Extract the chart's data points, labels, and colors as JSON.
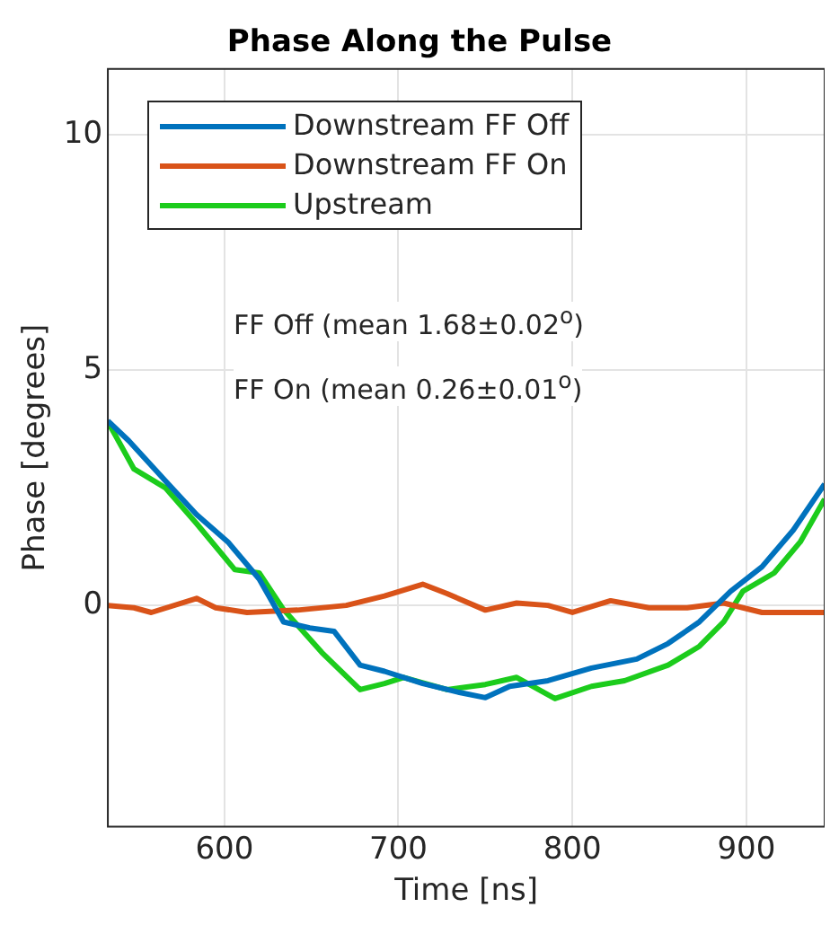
{
  "chart_data": {
    "type": "line",
    "title": "Phase Along the Pulse",
    "xlabel": "Time [ns]",
    "ylabel": "Phase [degrees]",
    "xlim": [
      533,
      945
    ],
    "xticks": [
      600,
      700,
      800,
      900
    ],
    "ylim": [
      -4.7,
      11.4
    ],
    "yticks": [
      0,
      5,
      10
    ],
    "grid": true,
    "legend": "top left",
    "marker": "none",
    "line_style": "solid",
    "annotations": [
      "FF Off (mean 1.68±0.02$^{o}$)",
      "FF On (mean 0.26±0.01$^{o}$)"
    ],
    "series": [
      {
        "name": "Downstream FF Off",
        "color": "#0072bd",
        "x": [
          533,
          545,
          566,
          584,
          602,
          620,
          634,
          649,
          663,
          678,
          692,
          714,
          735,
          750,
          764,
          786,
          811,
          837,
          855,
          873,
          891,
          909,
          927,
          945
        ],
        "values": [
          3.92,
          3.5,
          2.65,
          1.93,
          1.35,
          0.56,
          -0.35,
          -0.48,
          -0.55,
          -1.27,
          -1.4,
          -1.66,
          -1.85,
          -1.96,
          -1.72,
          -1.6,
          -1.33,
          -1.14,
          -0.81,
          -0.35,
          0.3,
          0.82,
          1.6,
          2.58
        ]
      },
      {
        "name": "Downstream FF On",
        "color": "#d95319",
        "x": [
          533,
          548,
          558,
          584,
          595,
          613,
          642,
          670,
          692,
          714,
          728,
          750,
          768,
          786,
          800,
          822,
          844,
          866,
          887,
          909,
          927,
          945
        ],
        "values": [
          0,
          -0.05,
          -0.15,
          0.15,
          -0.05,
          -0.15,
          -0.1,
          0,
          0.2,
          0.45,
          0.25,
          -0.1,
          0.05,
          0,
          -0.15,
          0.1,
          -0.05,
          -0.05,
          0.05,
          -0.15,
          -0.15,
          -0.15
        ]
      },
      {
        "name": "Upstream",
        "color": "#1ccc1c",
        "x": [
          533,
          548,
          566,
          584,
          606,
          620,
          634,
          656,
          678,
          692,
          703,
          728,
          750,
          768,
          790,
          811,
          830,
          855,
          873,
          887,
          898,
          916,
          931,
          945
        ],
        "values": [
          3.9,
          2.9,
          2.5,
          1.74,
          0.76,
          0.69,
          -0.09,
          -1,
          -1.79,
          -1.66,
          -1.53,
          -1.79,
          -1.68,
          -1.53,
          -1.98,
          -1.72,
          -1.6,
          -1.27,
          -0.87,
          -0.35,
          0.3,
          0.69,
          1.35,
          2.26
        ]
      }
    ]
  }
}
